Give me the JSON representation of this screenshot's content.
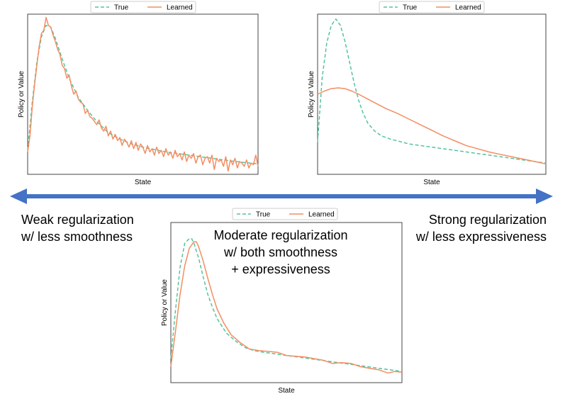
{
  "captions": {
    "weak": [
      "Weak regularization",
      "w/ less smoothness"
    ],
    "strong": [
      "Strong regularization",
      "w/ less expressiveness"
    ],
    "moderate": [
      "Moderate regularization",
      "w/ both smoothness",
      "+ expressiveness"
    ]
  },
  "colors": {
    "true": "#55c49a",
    "learned": "#f48d62",
    "arrow": "#4472c4",
    "frame": "#444444"
  },
  "chart_data": [
    {
      "id": "weak",
      "type": "line",
      "title": "",
      "xlabel": "State",
      "ylabel": "Policy or Value",
      "xlim": [
        0,
        1
      ],
      "ylim": [
        0,
        1
      ],
      "legend": {
        "position": "top-center",
        "entries": [
          "True",
          "Learned"
        ]
      },
      "series": [
        {
          "name": "True",
          "style": "dashed",
          "x": [
            0,
            0.02,
            0.04,
            0.06,
            0.08,
            0.1,
            0.12,
            0.15,
            0.18,
            0.22,
            0.26,
            0.3,
            0.35,
            0.4,
            0.45,
            0.5,
            0.6,
            0.7,
            0.8,
            0.9,
            1.0
          ],
          "y": [
            0.15,
            0.45,
            0.7,
            0.86,
            0.93,
            0.92,
            0.85,
            0.72,
            0.6,
            0.48,
            0.4,
            0.33,
            0.26,
            0.22,
            0.19,
            0.17,
            0.14,
            0.12,
            0.1,
            0.08,
            0.065
          ]
        },
        {
          "name": "Learned",
          "style": "solid",
          "x": [
            0,
            0.01,
            0.02,
            0.03,
            0.04,
            0.05,
            0.06,
            0.07,
            0.08,
            0.09,
            0.1,
            0.11,
            0.12,
            0.13,
            0.14,
            0.15,
            0.16,
            0.17,
            0.18,
            0.19,
            0.2,
            0.21,
            0.22,
            0.23,
            0.24,
            0.25,
            0.26,
            0.27,
            0.28,
            0.29,
            0.3,
            0.31,
            0.32,
            0.33,
            0.34,
            0.35,
            0.36,
            0.37,
            0.38,
            0.39,
            0.4,
            0.41,
            0.42,
            0.43,
            0.44,
            0.45,
            0.46,
            0.47,
            0.48,
            0.49,
            0.5,
            0.51,
            0.52,
            0.53,
            0.54,
            0.55,
            0.56,
            0.57,
            0.58,
            0.59,
            0.6,
            0.61,
            0.62,
            0.63,
            0.64,
            0.65,
            0.66,
            0.67,
            0.68,
            0.69,
            0.7,
            0.71,
            0.72,
            0.73,
            0.74,
            0.75,
            0.76,
            0.77,
            0.78,
            0.79,
            0.8,
            0.81,
            0.82,
            0.83,
            0.84,
            0.85,
            0.86,
            0.87,
            0.88,
            0.89,
            0.9,
            0.91,
            0.92,
            0.93,
            0.94,
            0.95,
            0.96,
            0.97,
            0.98,
            0.99,
            1.0
          ],
          "y": [
            0.14,
            0.24,
            0.42,
            0.56,
            0.68,
            0.8,
            0.88,
            0.9,
            0.98,
            0.93,
            0.92,
            0.87,
            0.83,
            0.78,
            0.75,
            0.68,
            0.66,
            0.6,
            0.62,
            0.55,
            0.5,
            0.52,
            0.47,
            0.45,
            0.44,
            0.38,
            0.4,
            0.36,
            0.35,
            0.33,
            0.31,
            0.34,
            0.29,
            0.27,
            0.3,
            0.24,
            0.27,
            0.22,
            0.25,
            0.21,
            0.23,
            0.18,
            0.22,
            0.2,
            0.17,
            0.21,
            0.16,
            0.2,
            0.15,
            0.19,
            0.17,
            0.13,
            0.18,
            0.14,
            0.16,
            0.12,
            0.17,
            0.13,
            0.15,
            0.11,
            0.16,
            0.12,
            0.14,
            0.1,
            0.15,
            0.11,
            0.13,
            0.09,
            0.14,
            0.08,
            0.12,
            0.1,
            0.13,
            0.07,
            0.11,
            0.12,
            0.06,
            0.1,
            0.11,
            0.07,
            0.12,
            0.03,
            0.1,
            0.08,
            0.09,
            0.05,
            0.11,
            0.02,
            0.09,
            0.06,
            0.1,
            0.04,
            0.08,
            0.07,
            0.05,
            0.09,
            0.04,
            0.07,
            0.06,
            0.12,
            0.05
          ]
        }
      ]
    },
    {
      "id": "strong",
      "type": "line",
      "title": "",
      "xlabel": "State",
      "ylabel": "Policy or Value",
      "xlim": [
        0,
        1
      ],
      "ylim": [
        0,
        1
      ],
      "legend": {
        "position": "top-center",
        "entries": [
          "True",
          "Learned"
        ]
      },
      "series": [
        {
          "name": "True",
          "style": "dashed",
          "x": [
            0,
            0.02,
            0.04,
            0.06,
            0.08,
            0.1,
            0.12,
            0.14,
            0.16,
            0.18,
            0.2,
            0.22,
            0.25,
            0.28,
            0.32,
            0.36,
            0.4,
            0.5,
            0.6,
            0.7,
            0.8,
            0.9,
            1.0
          ],
          "y": [
            0.2,
            0.6,
            0.82,
            0.93,
            0.97,
            0.93,
            0.83,
            0.7,
            0.57,
            0.46,
            0.38,
            0.32,
            0.27,
            0.24,
            0.22,
            0.205,
            0.19,
            0.17,
            0.15,
            0.13,
            0.11,
            0.09,
            0.07
          ]
        },
        {
          "name": "Learned",
          "style": "solid",
          "x": [
            0,
            0.03,
            0.06,
            0.09,
            0.12,
            0.15,
            0.18,
            0.22,
            0.26,
            0.3,
            0.35,
            0.4,
            0.45,
            0.5,
            0.55,
            0.6,
            0.65,
            0.7,
            0.75,
            0.8,
            0.85,
            0.9,
            0.95,
            1.0
          ],
          "y": [
            0.5,
            0.52,
            0.535,
            0.54,
            0.535,
            0.52,
            0.5,
            0.47,
            0.44,
            0.41,
            0.38,
            0.345,
            0.31,
            0.275,
            0.24,
            0.21,
            0.18,
            0.16,
            0.14,
            0.125,
            0.11,
            0.095,
            0.08,
            0.065
          ]
        }
      ]
    },
    {
      "id": "moderate",
      "type": "line",
      "title": "",
      "xlabel": "State",
      "ylabel": "Policy or Value",
      "xlim": [
        0,
        1
      ],
      "ylim": [
        0,
        1
      ],
      "legend": {
        "position": "top-center",
        "entries": [
          "True",
          "Learned"
        ]
      },
      "series": [
        {
          "name": "True",
          "style": "dashed",
          "x": [
            0,
            0.02,
            0.04,
            0.06,
            0.08,
            0.09,
            0.1,
            0.12,
            0.14,
            0.16,
            0.18,
            0.2,
            0.24,
            0.28,
            0.32,
            0.36,
            0.4,
            0.45,
            0.5,
            0.55,
            0.6,
            0.65,
            0.7,
            0.75,
            0.8,
            0.85,
            0.9,
            0.95,
            1.0
          ],
          "y": [
            0.15,
            0.45,
            0.72,
            0.87,
            0.9,
            0.9,
            0.87,
            0.78,
            0.66,
            0.55,
            0.47,
            0.4,
            0.31,
            0.26,
            0.22,
            0.2,
            0.19,
            0.18,
            0.17,
            0.16,
            0.15,
            0.14,
            0.13,
            0.12,
            0.11,
            0.1,
            0.09,
            0.08,
            0.07
          ]
        },
        {
          "name": "Learned",
          "style": "solid",
          "x": [
            0,
            0.02,
            0.04,
            0.06,
            0.08,
            0.1,
            0.11,
            0.12,
            0.14,
            0.16,
            0.18,
            0.2,
            0.23,
            0.26,
            0.3,
            0.34,
            0.38,
            0.42,
            0.46,
            0.5,
            0.54,
            0.58,
            0.62,
            0.66,
            0.7,
            0.74,
            0.78,
            0.82,
            0.86,
            0.9,
            0.94,
            0.97,
            1.0
          ],
          "y": [
            0.1,
            0.32,
            0.55,
            0.73,
            0.84,
            0.88,
            0.88,
            0.85,
            0.76,
            0.65,
            0.55,
            0.46,
            0.37,
            0.3,
            0.25,
            0.21,
            0.2,
            0.195,
            0.19,
            0.17,
            0.165,
            0.16,
            0.15,
            0.14,
            0.12,
            0.125,
            0.12,
            0.1,
            0.09,
            0.08,
            0.06,
            0.07,
            0.065
          ]
        }
      ]
    }
  ]
}
